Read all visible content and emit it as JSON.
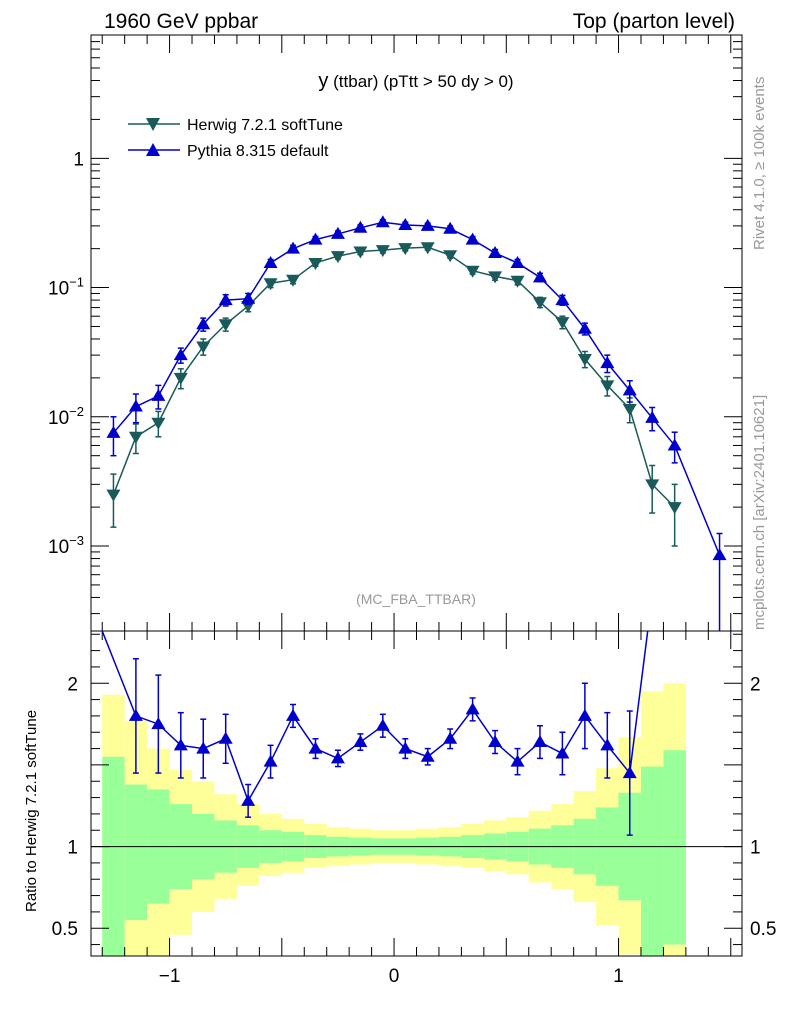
{
  "header": {
    "left": "1960 GeV ppbar",
    "right": "Top (parton level)"
  },
  "side": {
    "top": "Rivet 4.1.0, ≥ 100k events",
    "bottom": "mcplots.cern.ch [arXiv:2401.10621]"
  },
  "colors": {
    "herwig": "#1a5a5a",
    "pythia": "#0000cc",
    "band_inner": "#99ff99",
    "band_outer": "#ffff99"
  },
  "chart_data": [
    {
      "type": "line",
      "panel": "main",
      "title_main": "y",
      "title_rest": " (ttbar) (pTtt > 50 dy > 0)",
      "watermark": "(MC_FBA_TTBAR)",
      "yscale": "log",
      "xlim": [
        -1.35,
        1.55
      ],
      "ylim": [
        0.00022,
        9
      ],
      "y_ticks": [
        {
          "value": 1,
          "label": "1"
        },
        {
          "value": 0.1,
          "base": "10",
          "exp": "−1"
        },
        {
          "value": 0.01,
          "base": "10",
          "exp": "−2"
        },
        {
          "value": 0.001,
          "base": "10",
          "exp": "−3"
        }
      ],
      "legend_position": "top-left",
      "series": [
        {
          "name": "Herwig 7.2.1 softTune",
          "marker": "triangle-down",
          "x": [
            -1.25,
            -1.15,
            -1.05,
            -0.95,
            -0.85,
            -0.75,
            -0.65,
            -0.55,
            -0.45,
            -0.35,
            -0.25,
            -0.15,
            -0.05,
            0.05,
            0.15,
            0.25,
            0.35,
            0.45,
            0.55,
            0.65,
            0.75,
            0.85,
            0.95,
            1.05,
            1.15,
            1.25
          ],
          "values": [
            0.0025,
            0.007,
            0.009,
            0.02,
            0.035,
            0.052,
            0.072,
            0.108,
            0.115,
            0.155,
            0.175,
            0.19,
            0.195,
            0.202,
            0.205,
            0.178,
            0.135,
            0.122,
            0.113,
            0.077,
            0.054,
            0.028,
            0.0175,
            0.0115,
            0.003,
            0.002
          ],
          "err_low": [
            0.0011,
            0.0018,
            0.002,
            0.0035,
            0.005,
            0.006,
            0.007,
            0.008,
            0.008,
            0.009,
            0.009,
            0.01,
            0.01,
            0.01,
            0.01,
            0.009,
            0.008,
            0.008,
            0.008,
            0.007,
            0.006,
            0.004,
            0.003,
            0.0025,
            0.0012,
            0.001
          ],
          "err_high": [
            0.0011,
            0.0018,
            0.002,
            0.0035,
            0.005,
            0.006,
            0.007,
            0.008,
            0.008,
            0.009,
            0.009,
            0.01,
            0.01,
            0.01,
            0.01,
            0.009,
            0.008,
            0.008,
            0.008,
            0.007,
            0.006,
            0.004,
            0.003,
            0.0025,
            0.0012,
            0.001
          ]
        },
        {
          "name": "Pythia 8.315 default",
          "marker": "triangle-up",
          "x": [
            -1.25,
            -1.15,
            -1.05,
            -0.95,
            -0.85,
            -0.75,
            -0.65,
            -0.55,
            -0.45,
            -0.35,
            -0.25,
            -0.15,
            -0.05,
            0.05,
            0.15,
            0.25,
            0.35,
            0.45,
            0.55,
            0.65,
            0.75,
            0.85,
            0.95,
            1.05,
            1.15,
            1.25,
            1.45
          ],
          "values": [
            0.0075,
            0.012,
            0.0145,
            0.03,
            0.052,
            0.08,
            0.082,
            0.155,
            0.2,
            0.235,
            0.26,
            0.29,
            0.32,
            0.305,
            0.3,
            0.285,
            0.235,
            0.185,
            0.155,
            0.12,
            0.08,
            0.048,
            0.026,
            0.016,
            0.0098,
            0.006,
            0.00085
          ],
          "err_low": [
            0.0025,
            0.003,
            0.003,
            0.004,
            0.006,
            0.008,
            0.008,
            0.01,
            0.012,
            0.013,
            0.014,
            0.015,
            0.015,
            0.015,
            0.015,
            0.014,
            0.013,
            0.012,
            0.01,
            0.009,
            0.007,
            0.005,
            0.004,
            0.003,
            0.002,
            0.0016,
            0.00065
          ],
          "err_high": [
            0.0025,
            0.003,
            0.003,
            0.004,
            0.006,
            0.008,
            0.008,
            0.01,
            0.012,
            0.013,
            0.014,
            0.015,
            0.015,
            0.015,
            0.015,
            0.014,
            0.013,
            0.012,
            0.01,
            0.009,
            0.007,
            0.005,
            0.004,
            0.003,
            0.002,
            0.0016,
            0.0004
          ]
        }
      ]
    },
    {
      "type": "line",
      "panel": "ratio",
      "ylabel": "Ratio to Herwig 7.2.1 softTune",
      "xlim": [
        -1.35,
        1.55
      ],
      "ylim": [
        0.33,
        2.32
      ],
      "y_ticks": [
        {
          "value": 0.5,
          "label": "0.5"
        },
        {
          "value": 1,
          "label": "1"
        },
        {
          "value": 2,
          "label": "2"
        }
      ],
      "x_ticks": [
        {
          "value": -1,
          "label": "−1"
        },
        {
          "value": 0,
          "label": "0"
        },
        {
          "value": 1,
          "label": "1"
        }
      ],
      "reference_line": 1,
      "band_edges": [
        -1.3,
        -1.2,
        -1.1,
        -1.0,
        -0.9,
        -0.8,
        -0.7,
        -0.6,
        -0.5,
        -0.4,
        -0.3,
        -0.2,
        -0.1,
        0.0,
        0.1,
        0.2,
        0.3,
        0.4,
        0.5,
        0.6,
        0.7,
        0.8,
        0.9,
        1.0,
        1.1,
        1.2,
        1.3
      ],
      "band_inner_low": [
        0.25,
        0.55,
        0.65,
        0.74,
        0.8,
        0.84,
        0.87,
        0.9,
        0.91,
        0.93,
        0.94,
        0.945,
        0.95,
        0.95,
        0.945,
        0.94,
        0.93,
        0.92,
        0.91,
        0.89,
        0.87,
        0.83,
        0.76,
        0.67,
        0.25,
        0.4
      ],
      "band_inner_high": [
        1.55,
        1.38,
        1.35,
        1.26,
        1.2,
        1.16,
        1.13,
        1.1,
        1.09,
        1.07,
        1.06,
        1.055,
        1.05,
        1.05,
        1.055,
        1.06,
        1.07,
        1.08,
        1.09,
        1.11,
        1.13,
        1.17,
        1.24,
        1.33,
        1.49,
        1.59
      ],
      "band_outer_low": [
        0.15,
        0.15,
        0.32,
        0.46,
        0.6,
        0.68,
        0.76,
        0.82,
        0.84,
        0.87,
        0.88,
        0.89,
        0.9,
        0.9,
        0.89,
        0.88,
        0.87,
        0.85,
        0.83,
        0.78,
        0.74,
        0.66,
        0.52,
        0.34,
        0.1,
        0.2
      ],
      "band_outer_high": [
        1.93,
        1.77,
        1.6,
        1.47,
        1.4,
        1.32,
        1.26,
        1.2,
        1.17,
        1.14,
        1.12,
        1.11,
        1.1,
        1.1,
        1.11,
        1.12,
        1.14,
        1.16,
        1.18,
        1.22,
        1.26,
        1.34,
        1.48,
        1.67,
        1.95,
        2.0
      ],
      "series": [
        {
          "name": "Pythia 8.315 default / Herwig 7.2.1 softTune",
          "x": [
            -1.3,
            -1.15,
            -1.05,
            -0.95,
            -0.85,
            -0.75,
            -0.65,
            -0.55,
            -0.45,
            -0.35,
            -0.25,
            -0.15,
            -0.05,
            0.05,
            0.15,
            0.25,
            0.35,
            0.45,
            0.55,
            0.65,
            0.75,
            0.85,
            0.95,
            1.05,
            1.13
          ],
          "values": [
            2.32,
            1.8,
            1.75,
            1.62,
            1.6,
            1.66,
            1.28,
            1.52,
            1.8,
            1.6,
            1.54,
            1.64,
            1.74,
            1.6,
            1.55,
            1.66,
            1.84,
            1.64,
            1.52,
            1.64,
            1.57,
            1.8,
            1.62,
            1.45,
            2.32
          ],
          "err": [
            0,
            0.35,
            0.3,
            0.2,
            0.18,
            0.15,
            0.1,
            0.1,
            0.07,
            0.06,
            0.05,
            0.05,
            0.07,
            0.06,
            0.05,
            0.06,
            0.07,
            0.07,
            0.08,
            0.1,
            0.13,
            0.2,
            0.2,
            0.38,
            0
          ],
          "err_shown": [
            false,
            true,
            true,
            true,
            true,
            true,
            true,
            true,
            true,
            true,
            true,
            true,
            true,
            true,
            true,
            true,
            true,
            true,
            true,
            true,
            true,
            true,
            true,
            true,
            false
          ],
          "marker_shown": [
            false,
            true,
            true,
            true,
            true,
            true,
            true,
            true,
            true,
            true,
            true,
            true,
            true,
            true,
            true,
            true,
            true,
            true,
            true,
            true,
            true,
            true,
            true,
            true,
            false
          ]
        }
      ]
    }
  ]
}
